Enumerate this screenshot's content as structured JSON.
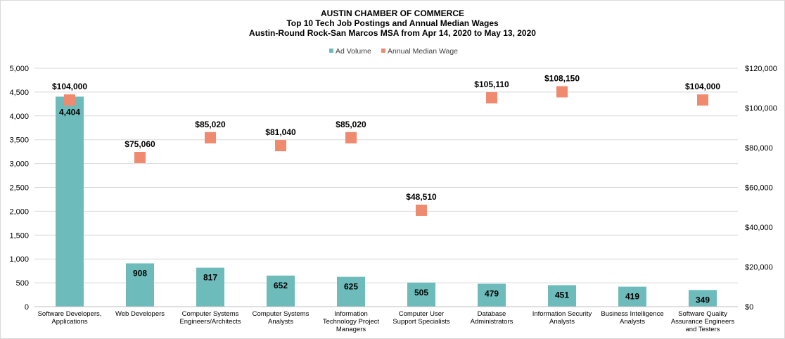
{
  "chart_data": {
    "type": "bar",
    "title": [
      "AUSTIN CHAMBER  OF COMMERCE",
      "Top 10 Tech Job Postings and Annual Median Wages",
      "Austin-Round  Rock-San Marcos MSA from Apr 14, 2020 to May 13, 2020"
    ],
    "categories": [
      [
        "Software Developers,",
        "Applications"
      ],
      [
        "Web Developers"
      ],
      [
        "Computer Systems",
        "Engineers/Architects"
      ],
      [
        "Computer Systems",
        "Analysts"
      ],
      [
        "Information",
        "Technology Project",
        "Managers"
      ],
      [
        "Computer User",
        "Support Specialists"
      ],
      [
        "Database",
        "Administrators"
      ],
      [
        "Information Security",
        "Analysts"
      ],
      [
        "Business Intelligence",
        "Analysts"
      ],
      [
        "Software Quality",
        "Assurance Engineers",
        "and Testers"
      ]
    ],
    "series": [
      {
        "name": "Ad Volume",
        "type": "bar",
        "axis": "left",
        "color": "#6dbcbb",
        "values": [
          4404,
          908,
          817,
          652,
          625,
          505,
          479,
          451,
          419,
          349
        ],
        "labels": [
          "4,404",
          "908",
          "817",
          "652",
          "625",
          "505",
          "479",
          "451",
          "419",
          "349"
        ]
      },
      {
        "name": "Annual Median Wage",
        "type": "marker",
        "axis": "right",
        "color": "#f08a6e",
        "values": [
          104000,
          75060,
          85020,
          81040,
          85020,
          48510,
          105110,
          108150,
          null,
          104000
        ],
        "labels": [
          "$104,000",
          "$75,060",
          "$85,020",
          "$81,040",
          "$85,020",
          "$48,510",
          "$105,110",
          "$108,150",
          "",
          "$104,000"
        ]
      }
    ],
    "y_left": {
      "min": 0,
      "max": 5000,
      "ticks": [
        "0",
        "500",
        "1,000",
        "1,500",
        "2,000",
        "2,500",
        "3,000",
        "3,500",
        "4,000",
        "4,500",
        "5,000"
      ]
    },
    "y_right": {
      "min": 0,
      "max": 120000,
      "ticks": [
        "$0",
        "$20,000",
        "$40,000",
        "$60,000",
        "$80,000",
        "$100,000",
        "$120,000"
      ]
    },
    "legend": {
      "placement": "top-center"
    },
    "grid": true
  }
}
